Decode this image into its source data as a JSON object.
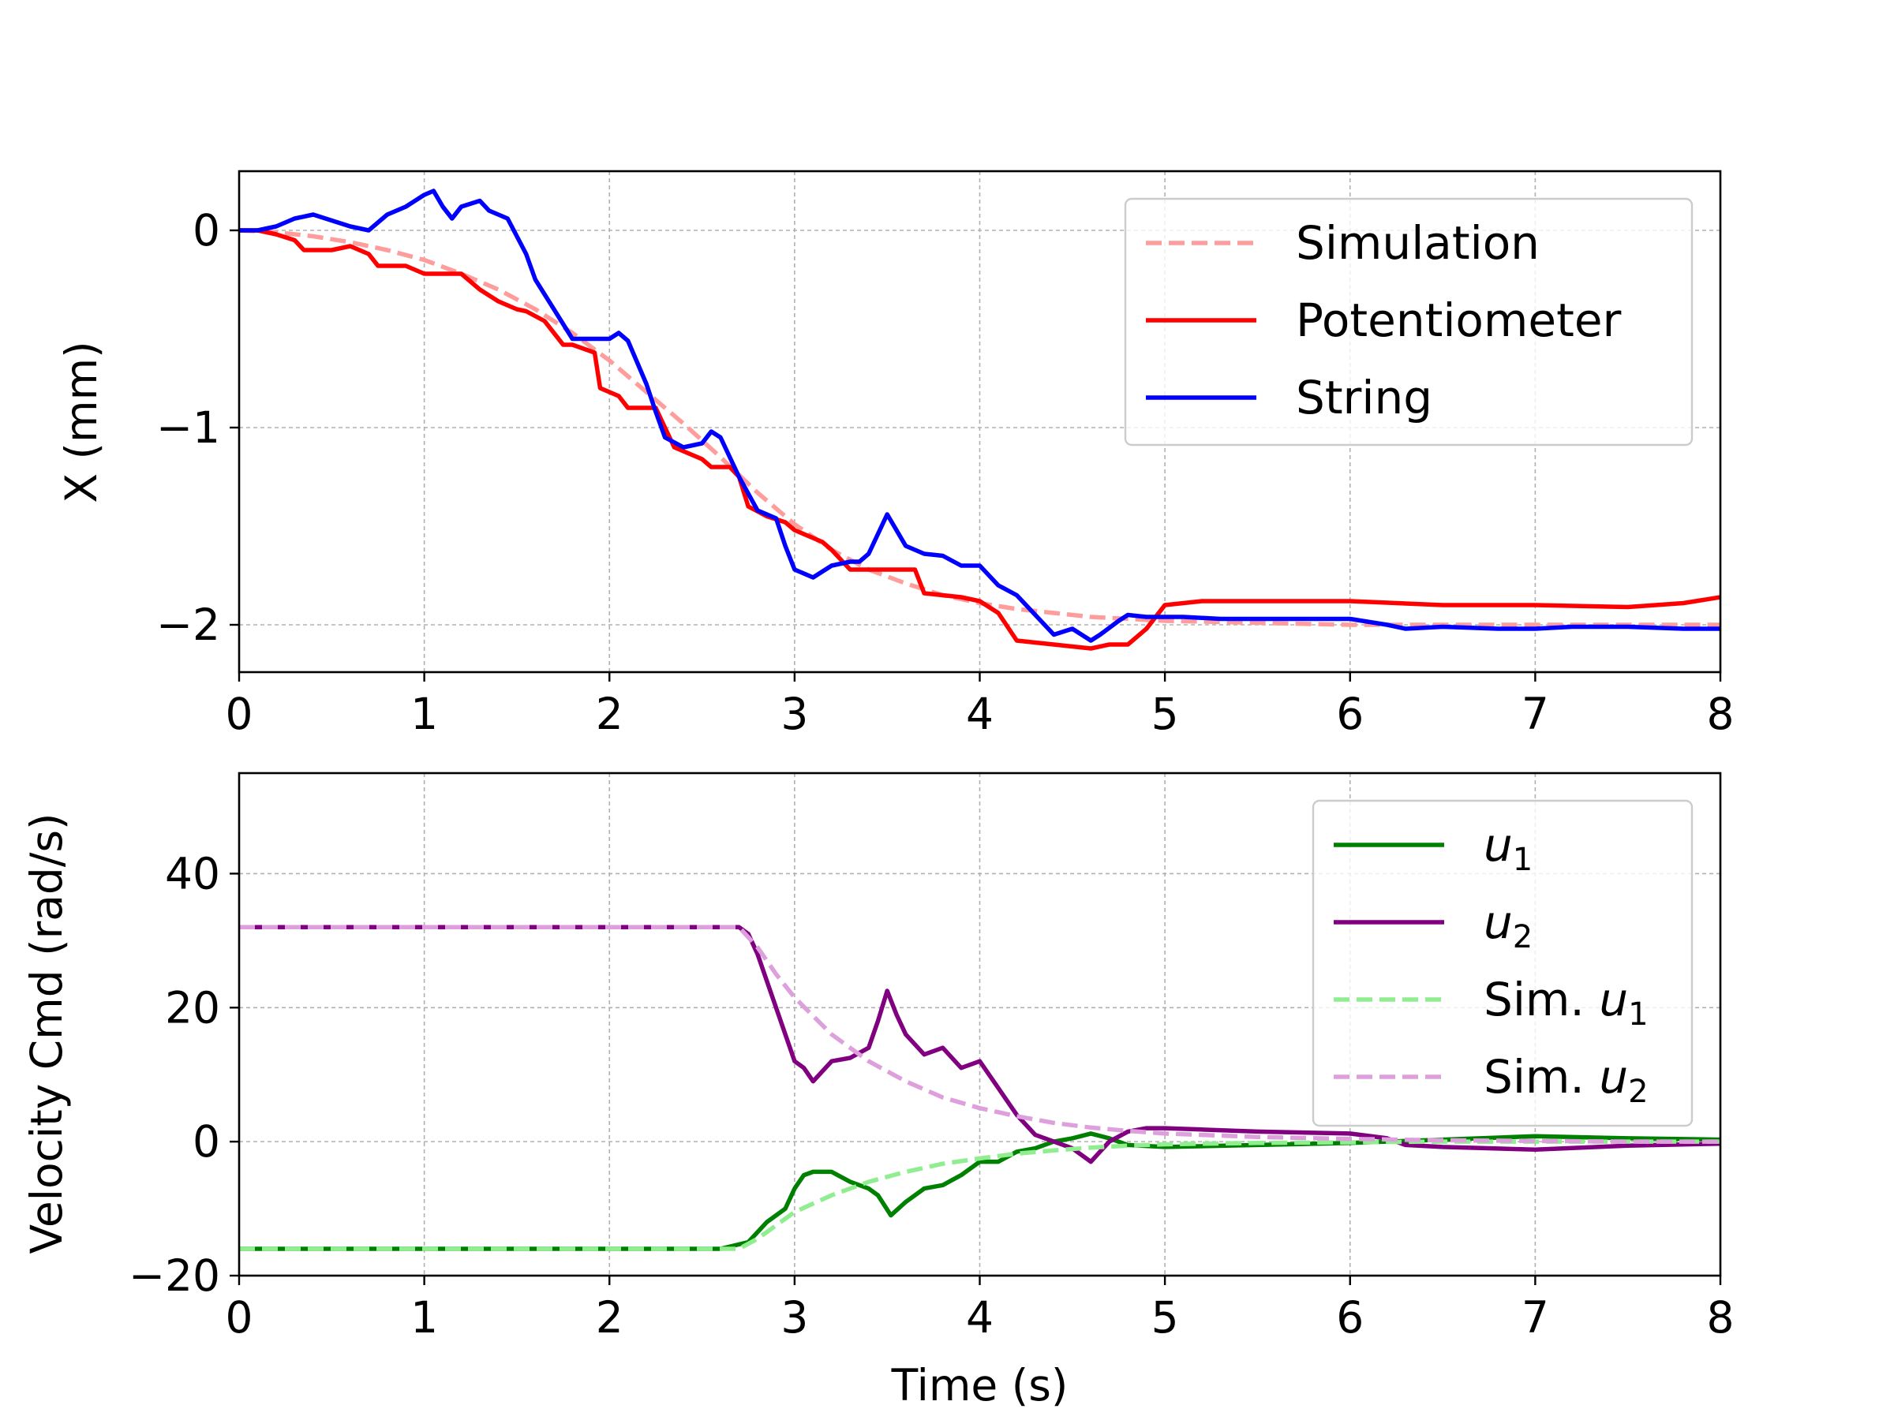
{
  "chart_data": [
    {
      "type": "line",
      "ylabel": "X (mm)",
      "xlabel": "",
      "xlim": [
        0,
        8
      ],
      "ylim": [
        -2.24,
        0.3
      ],
      "xticks": [
        0,
        1,
        2,
        3,
        4,
        5,
        6,
        7,
        8
      ],
      "yticks": [
        0,
        -1,
        -2
      ],
      "xtick_labels": [
        "0",
        "1",
        "2",
        "3",
        "4",
        "5",
        "6",
        "7",
        "8"
      ],
      "ytick_labels": [
        "0",
        "−1",
        "−2"
      ],
      "grid": true,
      "legend_position": "upper right",
      "series": [
        {
          "name": "Simulation",
          "color": "#ff9c9c",
          "dash": "dashed",
          "x": [
            0,
            0.2,
            0.4,
            0.6,
            0.8,
            1.0,
            1.2,
            1.4,
            1.6,
            1.8,
            2.0,
            2.2,
            2.4,
            2.6,
            2.8,
            3.0,
            3.2,
            3.4,
            3.6,
            3.8,
            4.0,
            4.2,
            4.4,
            4.6,
            4.8,
            5.0,
            5.5,
            6.0,
            6.5,
            7.0,
            7.5,
            8.0
          ],
          "y": [
            0,
            -0.01,
            -0.03,
            -0.06,
            -0.1,
            -0.15,
            -0.22,
            -0.3,
            -0.4,
            -0.52,
            -0.66,
            -0.82,
            -0.98,
            -1.15,
            -1.33,
            -1.49,
            -1.62,
            -1.72,
            -1.79,
            -1.85,
            -1.89,
            -1.92,
            -1.94,
            -1.96,
            -1.97,
            -1.98,
            -1.99,
            -2.0,
            -2.0,
            -2.0,
            -2.0,
            -2.0
          ]
        },
        {
          "name": "Potentiometer",
          "color": "#ff0000",
          "dash": "solid",
          "x": [
            0,
            0.1,
            0.2,
            0.3,
            0.35,
            0.5,
            0.6,
            0.7,
            0.75,
            0.9,
            1.0,
            1.05,
            1.2,
            1.3,
            1.4,
            1.5,
            1.55,
            1.65,
            1.75,
            1.8,
            1.92,
            1.95,
            2.05,
            2.1,
            2.25,
            2.35,
            2.4,
            2.5,
            2.55,
            2.65,
            2.7,
            2.75,
            2.85,
            2.95,
            3.0,
            3.15,
            3.2,
            3.3,
            3.45,
            3.5,
            3.55,
            3.65,
            3.7,
            3.8,
            3.9,
            4.0,
            4.1,
            4.2,
            4.4,
            4.6,
            4.7,
            4.8,
            4.9,
            5.0,
            5.2,
            5.5,
            6.0,
            6.5,
            7.0,
            7.5,
            7.8,
            8.0
          ],
          "y": [
            0,
            0,
            -0.02,
            -0.05,
            -0.1,
            -0.1,
            -0.08,
            -0.12,
            -0.18,
            -0.18,
            -0.22,
            -0.22,
            -0.22,
            -0.3,
            -0.36,
            -0.4,
            -0.41,
            -0.46,
            -0.58,
            -0.58,
            -0.62,
            -0.8,
            -0.84,
            -0.9,
            -0.9,
            -1.1,
            -1.12,
            -1.16,
            -1.2,
            -1.2,
            -1.25,
            -1.4,
            -1.45,
            -1.48,
            -1.52,
            -1.58,
            -1.62,
            -1.72,
            -1.72,
            -1.72,
            -1.72,
            -1.72,
            -1.84,
            -1.85,
            -1.86,
            -1.88,
            -1.94,
            -2.08,
            -2.1,
            -2.12,
            -2.1,
            -2.1,
            -2.02,
            -1.9,
            -1.88,
            -1.88,
            -1.88,
            -1.9,
            -1.9,
            -1.91,
            -1.89,
            -1.86
          ]
        },
        {
          "name": "String",
          "color": "#0000ff",
          "dash": "solid",
          "x": [
            0,
            0.1,
            0.2,
            0.3,
            0.4,
            0.5,
            0.6,
            0.7,
            0.8,
            0.9,
            1.0,
            1.05,
            1.1,
            1.15,
            1.2,
            1.3,
            1.35,
            1.45,
            1.55,
            1.6,
            1.7,
            1.8,
            1.9,
            2.0,
            2.05,
            2.1,
            2.2,
            2.25,
            2.3,
            2.4,
            2.5,
            2.55,
            2.6,
            2.7,
            2.8,
            2.9,
            2.95,
            3.0,
            3.1,
            3.2,
            3.3,
            3.35,
            3.4,
            3.5,
            3.6,
            3.7,
            3.8,
            3.9,
            4.0,
            4.1,
            4.2,
            4.3,
            4.4,
            4.5,
            4.6,
            4.65,
            4.75,
            4.8,
            4.9,
            5.0,
            5.1,
            5.3,
            5.5,
            5.8,
            6.0,
            6.2,
            6.3,
            6.5,
            6.8,
            7.0,
            7.2,
            7.5,
            7.8,
            8.0
          ],
          "y": [
            0,
            0,
            0.02,
            0.06,
            0.08,
            0.05,
            0.02,
            0.0,
            0.08,
            0.12,
            0.18,
            0.2,
            0.12,
            0.06,
            0.12,
            0.15,
            0.1,
            0.06,
            -0.12,
            -0.25,
            -0.4,
            -0.55,
            -0.55,
            -0.55,
            -0.52,
            -0.56,
            -0.78,
            -0.92,
            -1.05,
            -1.1,
            -1.08,
            -1.02,
            -1.05,
            -1.25,
            -1.42,
            -1.46,
            -1.6,
            -1.72,
            -1.76,
            -1.7,
            -1.68,
            -1.68,
            -1.64,
            -1.44,
            -1.6,
            -1.64,
            -1.65,
            -1.7,
            -1.7,
            -1.8,
            -1.85,
            -1.95,
            -2.05,
            -2.02,
            -2.08,
            -2.05,
            -1.98,
            -1.95,
            -1.96,
            -1.96,
            -1.96,
            -1.97,
            -1.97,
            -1.97,
            -1.97,
            -2.0,
            -2.02,
            -2.01,
            -2.02,
            -2.02,
            -2.01,
            -2.01,
            -2.02,
            -2.02
          ]
        }
      ]
    },
    {
      "type": "line",
      "ylabel": "Velocity Cmd (rad/s)",
      "xlabel": "Time (s)",
      "xlim": [
        0,
        8
      ],
      "ylim": [
        -20,
        55
      ],
      "xticks": [
        0,
        1,
        2,
        3,
        4,
        5,
        6,
        7,
        8
      ],
      "yticks": [
        -20,
        0,
        20,
        40
      ],
      "xtick_labels": [
        "0",
        "1",
        "2",
        "3",
        "4",
        "5",
        "6",
        "7",
        "8"
      ],
      "ytick_labels": [
        "−20",
        "0",
        "20",
        "40"
      ],
      "grid": true,
      "legend_position": "upper right",
      "series": [
        {
          "name": "u",
          "subscript": "1",
          "color": "#008000",
          "dash": "solid",
          "x": [
            0,
            2.6,
            2.75,
            2.85,
            2.95,
            3.0,
            3.05,
            3.1,
            3.2,
            3.3,
            3.4,
            3.45,
            3.52,
            3.6,
            3.7,
            3.8,
            3.9,
            4.0,
            4.1,
            4.2,
            4.3,
            4.4,
            4.5,
            4.6,
            4.7,
            4.8,
            5.0,
            5.5,
            6.0,
            6.5,
            7.0,
            7.5,
            8.0
          ],
          "y": [
            -16,
            -16,
            -15,
            -12,
            -10,
            -7,
            -5,
            -4.5,
            -4.5,
            -6,
            -7,
            -8,
            -11,
            -9,
            -7,
            -6.5,
            -5,
            -3,
            -3,
            -1.5,
            -1,
            0,
            0.5,
            1.2,
            0.5,
            -0.5,
            -0.8,
            -0.5,
            -0.2,
            0.3,
            0.8,
            0.5,
            0.3
          ]
        },
        {
          "name": "u",
          "subscript": "2",
          "color": "#800080",
          "dash": "solid",
          "x": [
            0,
            2.7,
            2.75,
            2.8,
            2.9,
            3.0,
            3.05,
            3.1,
            3.2,
            3.3,
            3.4,
            3.45,
            3.5,
            3.55,
            3.6,
            3.7,
            3.8,
            3.9,
            4.0,
            4.1,
            4.2,
            4.3,
            4.4,
            4.5,
            4.6,
            4.7,
            4.8,
            4.9,
            5.0,
            5.2,
            5.5,
            6.0,
            6.2,
            6.3,
            6.5,
            7.0,
            7.5,
            8.0
          ],
          "y": [
            32,
            32,
            31,
            28,
            20,
            12,
            11,
            9,
            12,
            12.5,
            14,
            18,
            22.5,
            19,
            16,
            13,
            14,
            11,
            12,
            8,
            4,
            1,
            0,
            -1,
            -3,
            0,
            1.5,
            2,
            2,
            1.8,
            1.5,
            1.2,
            0.5,
            -0.5,
            -0.8,
            -1.2,
            -0.6,
            -0.3
          ]
        },
        {
          "name": "Sim. u",
          "subscript": "1",
          "color": "#90ee90",
          "dash": "dashed",
          "x": [
            0,
            2.7,
            2.8,
            2.9,
            3.0,
            3.2,
            3.4,
            3.6,
            3.8,
            4.0,
            4.2,
            4.4,
            4.6,
            4.8,
            5.0,
            5.5,
            6.0,
            6.5,
            7.0,
            7.5,
            8.0
          ],
          "y": [
            -16,
            -16,
            -14.5,
            -12.5,
            -10.5,
            -8,
            -6,
            -4.5,
            -3.3,
            -2.5,
            -1.8,
            -1.3,
            -0.9,
            -0.6,
            -0.4,
            -0.2,
            -0.1,
            0,
            0,
            0,
            0
          ]
        },
        {
          "name": "Sim. u",
          "subscript": "2",
          "color": "#dda0dd",
          "dash": "dashed",
          "x": [
            0,
            2.7,
            2.8,
            2.9,
            3.0,
            3.2,
            3.4,
            3.6,
            3.8,
            4.0,
            4.2,
            4.4,
            4.6,
            4.8,
            5.0,
            5.5,
            6.0,
            6.5,
            7.0,
            7.5,
            8.0
          ],
          "y": [
            32,
            32,
            29,
            25,
            21.5,
            16,
            12,
            9,
            6.6,
            5,
            3.8,
            2.8,
            2.1,
            1.6,
            1.2,
            0.7,
            0.4,
            0.2,
            0.1,
            0,
            0
          ]
        }
      ]
    }
  ]
}
